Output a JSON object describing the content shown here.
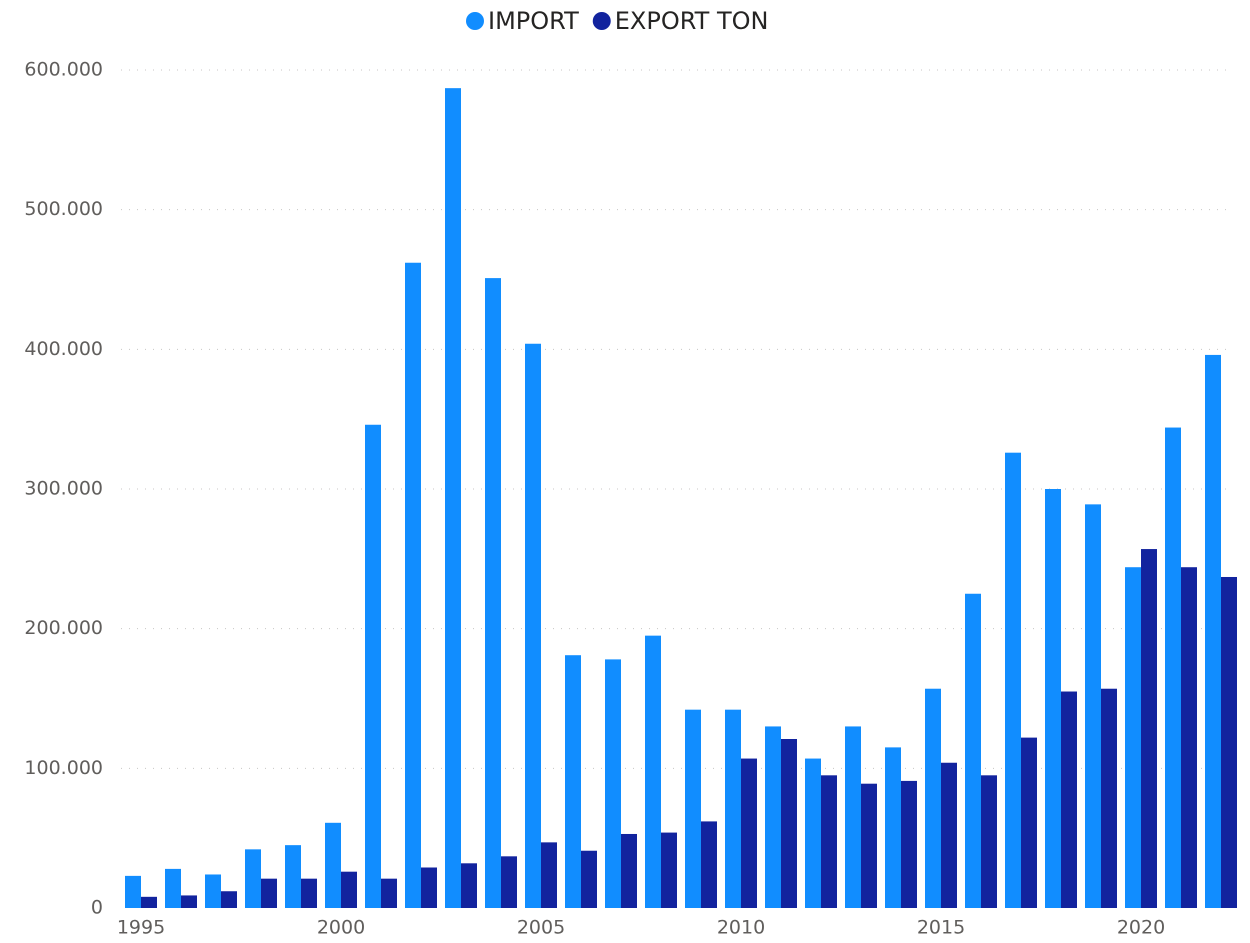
{
  "chart_data": {
    "type": "bar",
    "x": [
      1995,
      1996,
      1997,
      1998,
      1999,
      2000,
      2001,
      2002,
      2003,
      2004,
      2005,
      2006,
      2007,
      2008,
      2009,
      2010,
      2011,
      2012,
      2013,
      2014,
      2015,
      2016,
      2017,
      2018,
      2019,
      2020,
      2021,
      2022
    ],
    "series": [
      {
        "name": "IMPORT",
        "color": "#118DFF",
        "values": [
          23000,
          28000,
          24000,
          42000,
          45000,
          61000,
          346000,
          462000,
          587000,
          451000,
          404000,
          181000,
          178000,
          195000,
          142000,
          142000,
          130000,
          107000,
          130000,
          115000,
          157000,
          225000,
          326000,
          300000,
          289000,
          244000,
          344000,
          396000
        ]
      },
      {
        "name": "EXPORT TON",
        "color": "#12239E",
        "values": [
          8000,
          9000,
          12000,
          21000,
          21000,
          26000,
          21000,
          29000,
          32000,
          37000,
          47000,
          41000,
          53000,
          54000,
          62000,
          107000,
          121000,
          95000,
          89000,
          91000,
          104000,
          95000,
          122000,
          155000,
          157000,
          257000,
          244000,
          237000
        ]
      }
    ],
    "xlim": [
      1994.5,
      2022.5
    ],
    "xticks": [
      1995,
      2000,
      2005,
      2010,
      2015,
      2020
    ],
    "ylim": [
      0,
      600000
    ],
    "yticks": [
      0,
      {
        "value": 100000,
        "label": "100.000"
      },
      {
        "value": 200000,
        "label": "200.000"
      },
      {
        "value": 300000,
        "label": "300.000"
      },
      {
        "value": 400000,
        "label": "400.000"
      },
      {
        "value": 500000,
        "label": "500.000"
      },
      {
        "value": 600000,
        "label": "600.000"
      }
    ],
    "grid": true,
    "legend": "top"
  }
}
